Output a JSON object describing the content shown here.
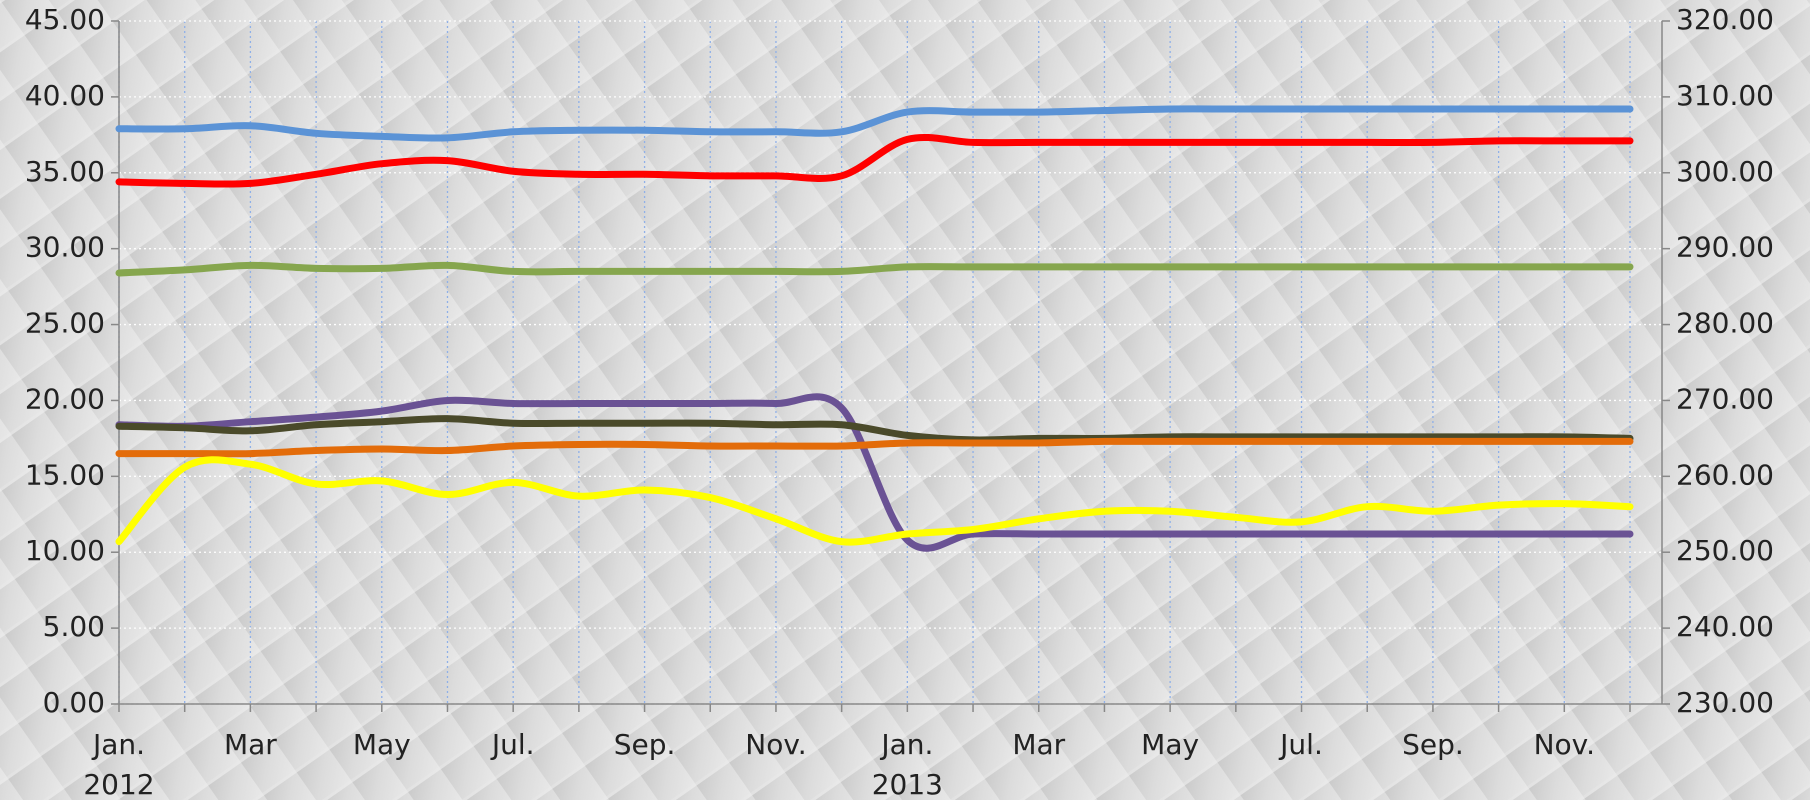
{
  "chart_data": {
    "type": "line",
    "categories": [
      "Jan. 2012",
      null,
      "Mar",
      null,
      "May",
      null,
      "Jul.",
      null,
      "Sep.",
      null,
      "Nov.",
      null,
      "Jan. 2013",
      null,
      "Mar",
      null,
      "May",
      null,
      "Jul.",
      null,
      "Sep.",
      null,
      "Nov.",
      null
    ],
    "series": [
      {
        "color": "#5b93d6",
        "values": [
          37.9,
          37.9,
          38.1,
          37.6,
          37.4,
          37.3,
          37.7,
          37.8,
          37.8,
          37.7,
          37.7,
          37.7,
          39.0,
          39.0,
          39.0,
          39.1,
          39.2,
          39.2,
          39.2,
          39.2,
          39.2,
          39.2,
          39.2,
          39.2
        ]
      },
      {
        "color": "#ff0000",
        "values": [
          34.4,
          34.3,
          34.3,
          34.9,
          35.6,
          35.8,
          35.1,
          34.9,
          34.9,
          34.8,
          34.8,
          34.8,
          37.2,
          37.0,
          37.0,
          37.0,
          37.0,
          37.0,
          37.0,
          37.0,
          37.0,
          37.1,
          37.1,
          37.1
        ]
      },
      {
        "color": "#86a64e",
        "values": [
          28.4,
          28.6,
          28.9,
          28.7,
          28.7,
          28.9,
          28.5,
          28.5,
          28.5,
          28.5,
          28.5,
          28.5,
          28.8,
          28.8,
          28.8,
          28.8,
          28.8,
          28.8,
          28.8,
          28.8,
          28.8,
          28.8,
          28.8,
          28.8
        ]
      },
      {
        "color": "#6a5294",
        "values": [
          18.4,
          18.3,
          18.6,
          18.9,
          19.3,
          20.0,
          19.8,
          19.8,
          19.8,
          19.8,
          19.8,
          19.5,
          10.8,
          11.2,
          11.2,
          11.2,
          11.2,
          11.2,
          11.2,
          11.2,
          11.2,
          11.2,
          11.2,
          11.2
        ]
      },
      {
        "color": "#4a4a2a",
        "values": [
          18.3,
          18.2,
          18.0,
          18.4,
          18.6,
          18.8,
          18.5,
          18.5,
          18.5,
          18.5,
          18.4,
          18.4,
          17.7,
          17.4,
          17.5,
          17.5,
          17.6,
          17.6,
          17.6,
          17.6,
          17.6,
          17.6,
          17.6,
          17.5
        ]
      },
      {
        "color": "#e36c0a",
        "values": [
          16.5,
          16.5,
          16.5,
          16.7,
          16.8,
          16.7,
          17.0,
          17.1,
          17.1,
          17.0,
          17.0,
          17.0,
          17.2,
          17.2,
          17.2,
          17.3,
          17.3,
          17.3,
          17.3,
          17.3,
          17.3,
          17.3,
          17.3,
          17.3
        ]
      },
      {
        "color": "#ffff00",
        "values": [
          10.7,
          15.6,
          15.8,
          14.5,
          14.7,
          13.8,
          14.6,
          13.7,
          14.1,
          13.6,
          12.2,
          10.7,
          11.2,
          11.5,
          12.2,
          12.7,
          12.7,
          12.3,
          12.0,
          13.0,
          12.7,
          13.1,
          13.2,
          13.0
        ]
      }
    ],
    "ylim": [
      0,
      45
    ],
    "yticks": [
      {
        "value": 0,
        "label": "0.00"
      },
      {
        "value": 5,
        "label": "5.00"
      },
      {
        "value": 10,
        "label": "10.00"
      },
      {
        "value": 15,
        "label": "15.00"
      },
      {
        "value": 20,
        "label": "20.00"
      },
      {
        "value": 25,
        "label": "25.00"
      },
      {
        "value": 30,
        "label": "30.00"
      },
      {
        "value": 35,
        "label": "35.00"
      },
      {
        "value": 40,
        "label": "40.00"
      },
      {
        "value": 45,
        "label": "45.00"
      }
    ],
    "y2lim": [
      230,
      320
    ],
    "y2ticks": [
      {
        "value": 230,
        "label": "230.00"
      },
      {
        "value": 240,
        "label": "240.00"
      },
      {
        "value": 250,
        "label": "250.00"
      },
      {
        "value": 260,
        "label": "260.00"
      },
      {
        "value": 270,
        "label": "270.00"
      },
      {
        "value": 280,
        "label": "280.00"
      },
      {
        "value": 290,
        "label": "290.00"
      },
      {
        "value": 300,
        "label": "300.00"
      },
      {
        "value": 310,
        "label": "310.00"
      },
      {
        "value": 320,
        "label": "320.00"
      }
    ],
    "grid": true
  }
}
